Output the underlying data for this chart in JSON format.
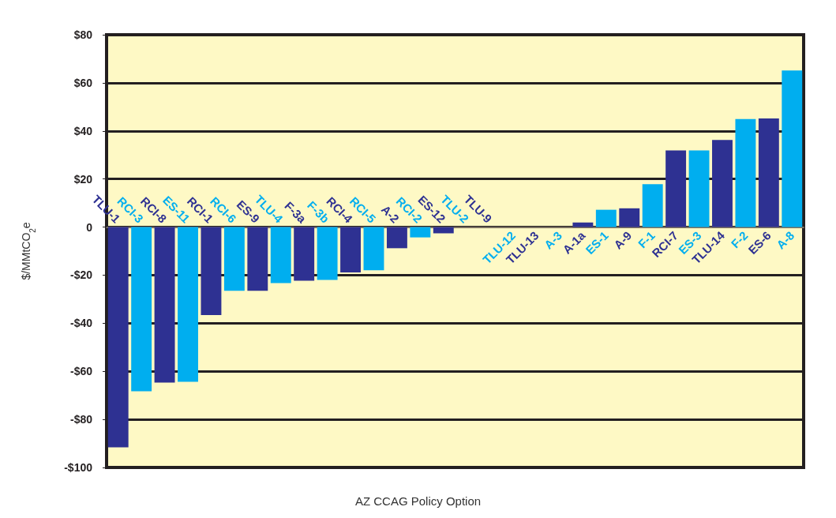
{
  "chart_data": {
    "type": "bar",
    "xlabel": "AZ CCAG Policy Option",
    "ylabel": "$/MMtCO$_{2}$e",
    "categories": [
      "TLU-1",
      "RCI-3",
      "RCI-8",
      "ES-11",
      "RCI-1",
      "RCI-6",
      "ES-9",
      "TLU-4",
      "F-3a",
      "F-3b",
      "RCI-4",
      "RCI-5",
      "A-2",
      "RCI-2",
      "ES-12",
      "TLU-2",
      "TLU-9",
      "TLU-12",
      "TLU-13",
      "A-3",
      "A-1a",
      "ES-1",
      "A-9",
      "F-1",
      "RCI-7",
      "ES-3",
      "TLU-14",
      "F-2",
      "ES-6",
      "A-8"
    ],
    "values": [
      -91.6,
      -68.3,
      -64.7,
      -64.4,
      -36.6,
      -26.5,
      -26.5,
      -23.3,
      -22.3,
      -22,
      -18.9,
      -18,
      -8.8,
      -4.3,
      -2.6,
      0,
      0,
      0,
      0,
      0,
      1.9,
      7.2,
      7.8,
      17.8,
      31.9,
      31.9,
      36.2,
      44.9,
      45.2,
      65.1
    ],
    "colors": [
      "#2e3192",
      "#00aeef",
      "#2e3192",
      "#00aeef",
      "#2e3192",
      "#00aeef",
      "#2e3192",
      "#00aeef",
      "#2e3192",
      "#00aeef",
      "#2e3192",
      "#00aeef",
      "#2e3192",
      "#00aeef",
      "#2e3192",
      "#00aeef",
      "#2e3192",
      "#00aeef",
      "#2e3192",
      "#00aeef",
      "#2e3192",
      "#00aeef",
      "#2e3192",
      "#00aeef",
      "#2e3192",
      "#00aeef",
      "#2e3192",
      "#00aeef",
      "#2e3192",
      "#00aeef"
    ],
    "ylim": [
      -100,
      80
    ],
    "yticks": [
      {
        "value": -100,
        "label": "-$100"
      },
      {
        "value": -80,
        "label": "-$80"
      },
      {
        "value": -60,
        "label": "-$60"
      },
      {
        "value": -40,
        "label": "-$40"
      },
      {
        "value": -20,
        "label": "-$20"
      },
      {
        "value": 0,
        "label": "0"
      },
      {
        "value": 20,
        "label": "$20"
      },
      {
        "value": 40,
        "label": "$40"
      },
      {
        "value": 60,
        "label": "$60"
      },
      {
        "value": 80,
        "label": "$80"
      }
    ],
    "grid": "y"
  }
}
